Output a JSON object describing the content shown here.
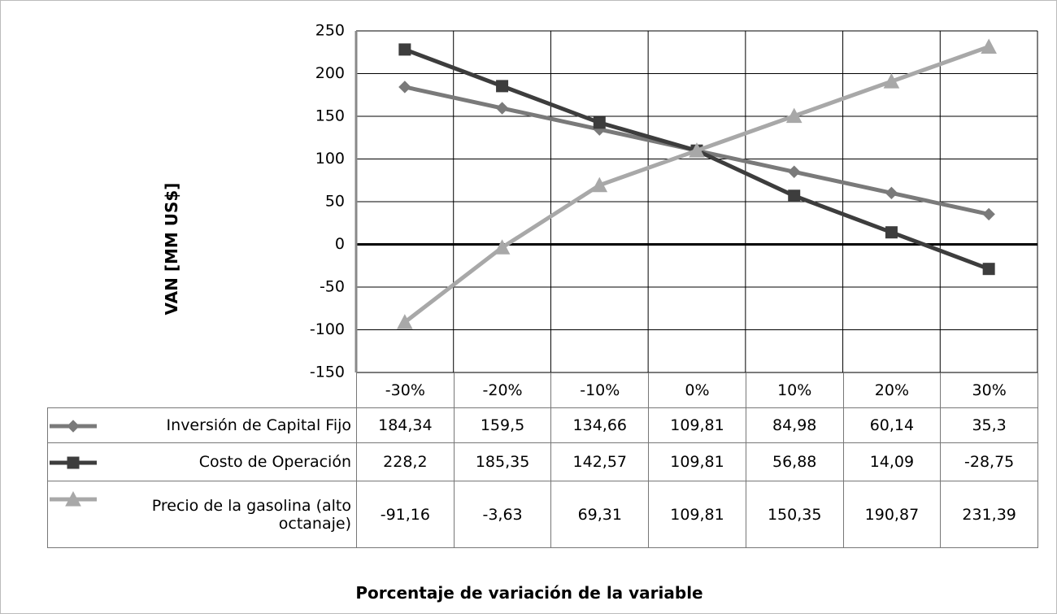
{
  "chart_data": {
    "type": "line",
    "y_axis_label": "VAN [MM US$]",
    "x_axis_label": "Porcentaje de variación de la variable",
    "categories": [
      "-30%",
      "-20%",
      "-10%",
      "0%",
      "10%",
      "20%",
      "30%"
    ],
    "ylim": [
      -150,
      250
    ],
    "yticks": [
      -150,
      -100,
      -50,
      0,
      50,
      100,
      150,
      200,
      250
    ],
    "grid": true,
    "series": [
      {
        "name": "Inversión de Capital Fijo",
        "color": "#7a7a7a",
        "marker": "diamond",
        "values": [
          184.34,
          159.5,
          134.66,
          109.81,
          84.98,
          60.14,
          35.3
        ],
        "value_labels": [
          "184,34",
          "159,5",
          "134,66",
          "109,81",
          "84,98",
          "60,14",
          "35,3"
        ]
      },
      {
        "name": "Costo de Operación",
        "color": "#3d3d3d",
        "marker": "square",
        "values": [
          228.2,
          185.35,
          142.57,
          109.81,
          56.88,
          14.09,
          -28.75
        ],
        "value_labels": [
          "228,2",
          "185,35",
          "142,57",
          "109,81",
          "56,88",
          "14,09",
          "-28,75"
        ]
      },
      {
        "name": "Precio de la gasolina (alto octanaje)",
        "color": "#a8a8a8",
        "marker": "triangle",
        "values": [
          -91.16,
          -3.63,
          69.31,
          109.81,
          150.35,
          190.87,
          231.39
        ],
        "value_labels": [
          "-91,16",
          "-3,63",
          "69,31",
          "109,81",
          "150,35",
          "190,87",
          "231,39"
        ]
      }
    ]
  }
}
